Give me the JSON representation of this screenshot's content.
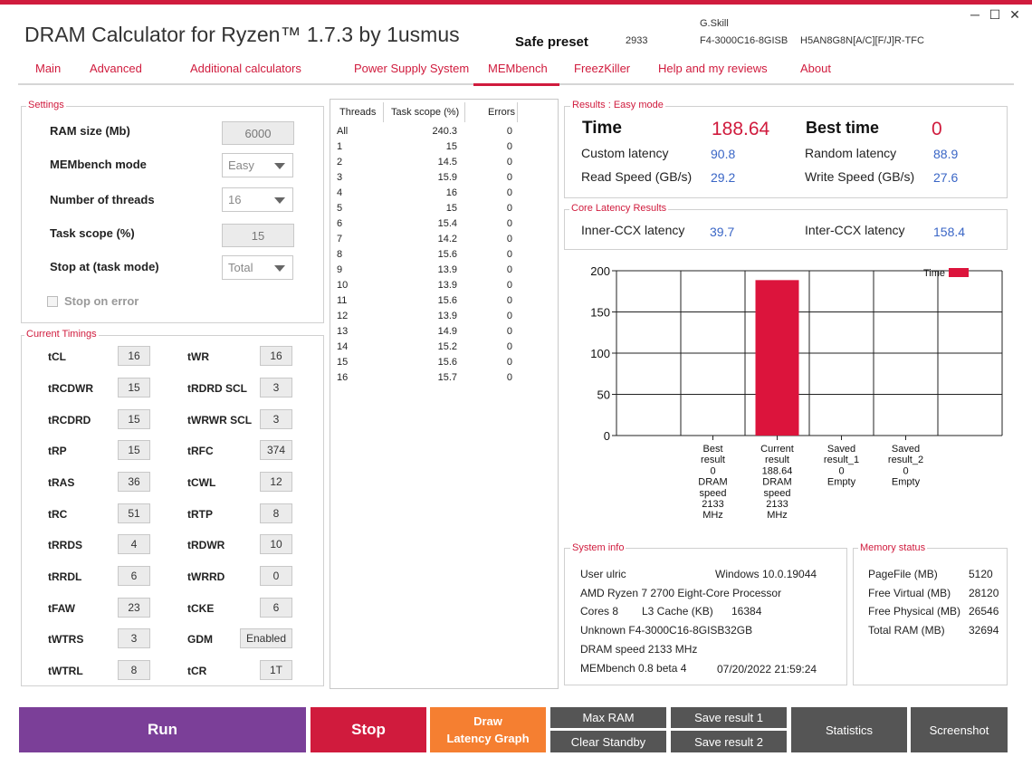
{
  "title": "DRAM Calculator for Ryzen™ 1.7.3 by 1usmus",
  "preset_label": "Safe preset",
  "preset_freq": "2933",
  "module_brand": "G.Skill",
  "module_part": "F4-3000C16-8GISB",
  "module_ic": "H5AN8G8N[A/C][F/J]R-TFC",
  "window": {
    "minimize": "─",
    "maximize": "☐",
    "close": "✕"
  },
  "tabs": [
    "Main",
    "Advanced",
    "Additional calculators",
    "Power Supply System",
    "MEMbench",
    "FreezKiller",
    "Help and my reviews",
    "About"
  ],
  "settings": {
    "title": "Settings",
    "ram_size_label": "RAM size (Mb)",
    "ram_size": "6000",
    "mode_label": "MEMbench mode",
    "mode": "Easy",
    "threads_label": "Number of threads",
    "threads": "16",
    "scope_label": "Task scope (%)",
    "scope": "15",
    "stop_label": "Stop at (task mode)",
    "stop": "Total",
    "stop_on_error": "Stop on error"
  },
  "timings": {
    "title": "Current Timings",
    "rows": [
      {
        "l1": "tCL",
        "v1": "16",
        "l2": "tWR",
        "v2": "16"
      },
      {
        "l1": "tRCDWR",
        "v1": "15",
        "l2": "tRDRD SCL",
        "v2": "3"
      },
      {
        "l1": "tRCDRD",
        "v1": "15",
        "l2": "tWRWR SCL",
        "v2": "3"
      },
      {
        "l1": "tRP",
        "v1": "15",
        "l2": "tRFC",
        "v2": "374"
      },
      {
        "l1": "tRAS",
        "v1": "36",
        "l2": "tCWL",
        "v2": "12"
      },
      {
        "l1": "tRC",
        "v1": "51",
        "l2": "tRTP",
        "v2": "8"
      },
      {
        "l1": "tRRDS",
        "v1": "4",
        "l2": "tRDWR",
        "v2": "10"
      },
      {
        "l1": "tRRDL",
        "v1": "6",
        "l2": "tWRRD",
        "v2": "0"
      },
      {
        "l1": "tFAW",
        "v1": "23",
        "l2": "tCKE",
        "v2": "6"
      },
      {
        "l1": "tWTRS",
        "v1": "3",
        "l2": "GDM",
        "v2": "Enabled"
      },
      {
        "l1": "tWTRL",
        "v1": "8",
        "l2": "tCR",
        "v2": "1T"
      }
    ]
  },
  "thread_table": {
    "headers": [
      "Threads",
      "Task scope (%)",
      "Errors"
    ],
    "rows": [
      [
        "All",
        "240.3",
        "0"
      ],
      [
        "1",
        "15",
        "0"
      ],
      [
        "2",
        "14.5",
        "0"
      ],
      [
        "3",
        "15.9",
        "0"
      ],
      [
        "4",
        "16",
        "0"
      ],
      [
        "5",
        "15",
        "0"
      ],
      [
        "6",
        "15.4",
        "0"
      ],
      [
        "7",
        "14.2",
        "0"
      ],
      [
        "8",
        "15.6",
        "0"
      ],
      [
        "9",
        "13.9",
        "0"
      ],
      [
        "10",
        "13.9",
        "0"
      ],
      [
        "11",
        "15.6",
        "0"
      ],
      [
        "12",
        "13.9",
        "0"
      ],
      [
        "13",
        "14.9",
        "0"
      ],
      [
        "14",
        "15.2",
        "0"
      ],
      [
        "15",
        "15.6",
        "0"
      ],
      [
        "16",
        "15.7",
        "0"
      ]
    ]
  },
  "results": {
    "title": "Results : Easy mode",
    "time_label": "Time",
    "time": "188.64",
    "best_label": "Best time",
    "best": "0",
    "custom_label": "Custom latency",
    "custom": "90.8",
    "random_label": "Random latency",
    "random": "88.9",
    "read_label": "Read Speed (GB/s)",
    "read": "29.2",
    "write_label": "Write Speed (GB/s)",
    "write": "27.6"
  },
  "core_latency": {
    "title": "Core Latency Results",
    "inner_label": "Inner-CCX latency",
    "inner": "39.7",
    "inter_label": "Inter-CCX latency",
    "inter": "158.4"
  },
  "chart_data": {
    "type": "bar",
    "legend": "Time",
    "legend_position": "top-right",
    "grid": true,
    "ylim": [
      0,
      200
    ],
    "yticks": [
      0,
      50,
      100,
      150,
      200
    ],
    "bar_color": "#dc143c",
    "categories": [
      [
        "Best",
        "result",
        "0",
        "DRAM",
        "speed",
        "2133",
        "MHz"
      ],
      [
        "Current",
        "result",
        "188.64",
        "DRAM",
        "speed",
        "2133",
        "MHz"
      ],
      [
        "Saved",
        "result_1",
        "0",
        "Empty"
      ],
      [
        "Saved",
        "result_2",
        "0",
        "Empty"
      ]
    ],
    "values": [
      0,
      188.64,
      0,
      0
    ]
  },
  "system": {
    "title": "System info",
    "user": "User ulric",
    "os": "Windows 10.0.19044",
    "cpu": "AMD Ryzen 7 2700 Eight-Core Processor",
    "cores": "Cores 8",
    "l3_label": "L3 Cache (KB)",
    "l3": "16384",
    "mem": "Unknown F4-3000C16-8GISB32GB",
    "dram": "DRAM speed 2133 MHz",
    "bench": "MEMbench 0.8 beta 4",
    "date": "07/20/2022 21:59:24"
  },
  "memory": {
    "title": "Memory status",
    "rows": [
      [
        "PageFile (MB)",
        "5120"
      ],
      [
        "Free Virtual (MB)",
        "28120"
      ],
      [
        "Free Physical (MB)",
        "26546"
      ],
      [
        "Total RAM (MB)",
        "32694"
      ]
    ]
  },
  "buttons": {
    "run": "Run",
    "stop": "Stop",
    "draw1": "Draw",
    "draw2": "Latency Graph",
    "max_ram": "Max RAM",
    "clear_standby": "Clear Standby",
    "save1": "Save result 1",
    "save2": "Save result 2",
    "statistics": "Statistics",
    "screenshot": "Screenshot"
  }
}
